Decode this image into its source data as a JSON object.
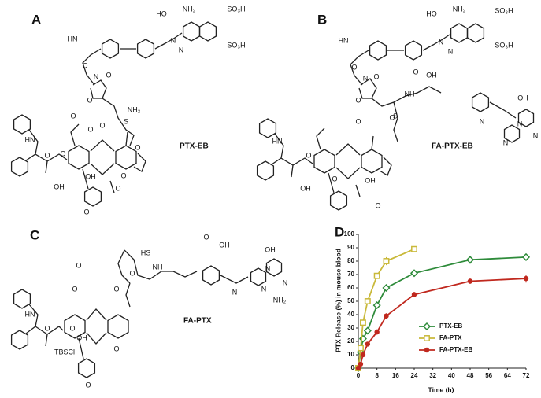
{
  "panels": [
    {
      "letter": "A",
      "compound": "PTX-EB",
      "atoms": [
        "HO",
        "NH₂",
        "SO₃H",
        "SO₃H",
        "N",
        "N",
        "HN",
        "O",
        "N",
        "O",
        "O",
        "S",
        "NH₂",
        "O",
        "O",
        "O",
        "O",
        "HN",
        "O",
        "OH",
        "O",
        "OH",
        "O",
        "O",
        "O"
      ]
    },
    {
      "letter": "B",
      "compound": "FA-PTX-EB",
      "atoms": [
        "HO",
        "NH₂",
        "SO₃H",
        "SO₃H",
        "N",
        "N",
        "HN",
        "O",
        "N",
        "O",
        "O",
        "S",
        "O",
        "OH",
        "NH",
        "O",
        "N",
        "OH",
        "N",
        "N",
        "N",
        "O",
        "HN",
        "O",
        "OH",
        "O",
        "OH",
        "O"
      ]
    },
    {
      "letter": "C",
      "compound": "FA-PTX",
      "atoms": [
        "O",
        "OH",
        "HS",
        "NH",
        "O",
        "N",
        "OH",
        "N",
        "N",
        "NH₂",
        "N",
        "O",
        "O",
        "O",
        "HN",
        "O",
        "TBSCl",
        "OH",
        "O",
        "O",
        "O"
      ]
    }
  ],
  "chart_data": {
    "type": "line",
    "letter": "D",
    "x_label": "Time (h)",
    "y_label": "PTX Release (%) in mouse blood",
    "xlim": [
      0,
      72
    ],
    "xticks": [
      0,
      8,
      16,
      24,
      32,
      40,
      48,
      56,
      64,
      72
    ],
    "ylim": [
      0,
      100
    ],
    "yticks": [
      0,
      10,
      20,
      30,
      40,
      50,
      60,
      70,
      80,
      90,
      100
    ],
    "series": [
      {
        "name": "PTX-EB",
        "color": "#2e8b3a",
        "marker": "diamond",
        "x": [
          0,
          1,
          2,
          4,
          8,
          12,
          24,
          48,
          72
        ],
        "values": [
          0,
          12,
          22,
          28,
          47,
          60,
          71,
          81,
          83
        ],
        "errors": [
          0,
          1,
          1,
          1,
          2,
          2,
          2,
          3,
          2
        ]
      },
      {
        "name": "FA-PTX",
        "color": "#c9b93a",
        "marker": "square",
        "x": [
          0,
          1,
          2,
          4,
          8,
          12,
          24
        ],
        "values": [
          0,
          15,
          34,
          50,
          69,
          80,
          89
        ],
        "errors": [
          0,
          1,
          2,
          2,
          2,
          3,
          2
        ]
      },
      {
        "name": "FA-PTX-EB",
        "color": "#c0281e",
        "marker": "circle",
        "x": [
          0,
          1,
          2,
          4,
          8,
          12,
          24,
          48,
          72
        ],
        "values": [
          0,
          3,
          10,
          18,
          27,
          39,
          55,
          65,
          67
        ],
        "errors": [
          0,
          1,
          1,
          1,
          2,
          2,
          2,
          2,
          3
        ]
      }
    ]
  }
}
